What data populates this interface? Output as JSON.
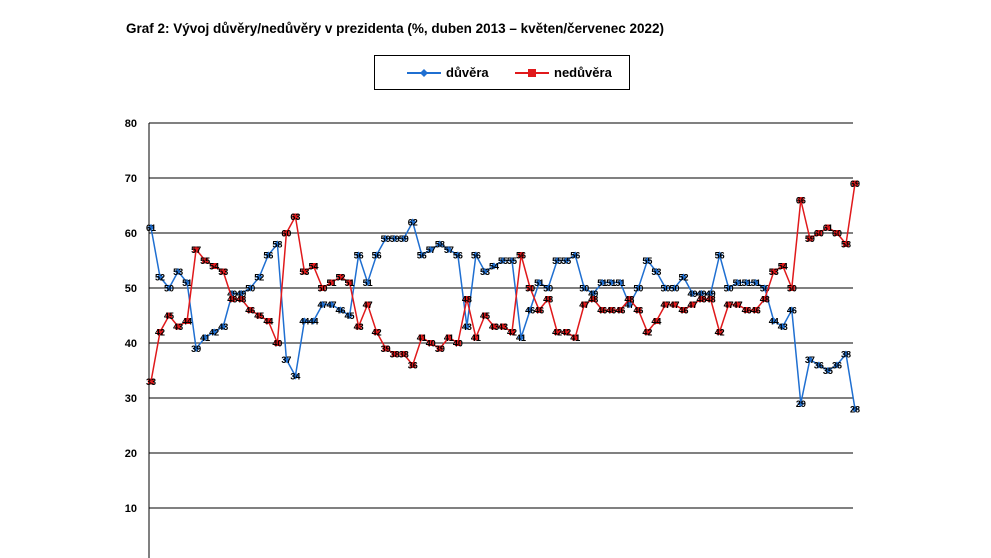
{
  "title": "Graf 2: Vývoj důvěry/nedůvěry v prezidenta (%, duben 2013 – květen/červenec 2022)",
  "chart_data": {
    "type": "line",
    "title": "Graf 2: Vývoj důvěry/nedůvěry v prezidenta (%, duben 2013 – květen/červenec 2022)",
    "ylim": [
      0,
      80
    ],
    "yticks": [
      "10",
      "20",
      "30",
      "40",
      "50",
      "60",
      "70",
      "80"
    ],
    "grid": true,
    "legend_position": "top-center",
    "series": [
      {
        "name": "důvěra",
        "color": "#1f6fd1",
        "marker": "diamond",
        "values": [
          61,
          52,
          50,
          53,
          51,
          39,
          41,
          42,
          43,
          49,
          49,
          50,
          52,
          56,
          58,
          37,
          34,
          44,
          44,
          47,
          47,
          46,
          45,
          56,
          51,
          56,
          59,
          59,
          59,
          62,
          56,
          57,
          58,
          57,
          56,
          43,
          56,
          53,
          54,
          55,
          55,
          41,
          46,
          51,
          50,
          55,
          55,
          56,
          50,
          49,
          51,
          51,
          51,
          47,
          50,
          55,
          53,
          50,
          50,
          52,
          49,
          49,
          49,
          56,
          50,
          51,
          51,
          51,
          50,
          44,
          43,
          46,
          29,
          37,
          36,
          35,
          36,
          38,
          28
        ]
      },
      {
        "name": "nedůvěra",
        "color": "#e0191b",
        "marker": "square",
        "values": [
          33,
          42,
          45,
          43,
          44,
          57,
          55,
          54,
          53,
          48,
          48,
          46,
          45,
          44,
          40,
          60,
          63,
          53,
          54,
          50,
          51,
          52,
          51,
          43,
          47,
          42,
          39,
          38,
          38,
          36,
          41,
          40,
          39,
          41,
          40,
          48,
          41,
          45,
          43,
          43,
          42,
          56,
          50,
          46,
          48,
          42,
          42,
          41,
          47,
          48,
          46,
          46,
          46,
          48,
          46,
          42,
          44,
          47,
          47,
          46,
          47,
          48,
          48,
          42,
          47,
          47,
          46,
          46,
          48,
          53,
          54,
          50,
          66,
          59,
          60,
          61,
          60,
          58,
          69
        ]
      }
    ]
  }
}
